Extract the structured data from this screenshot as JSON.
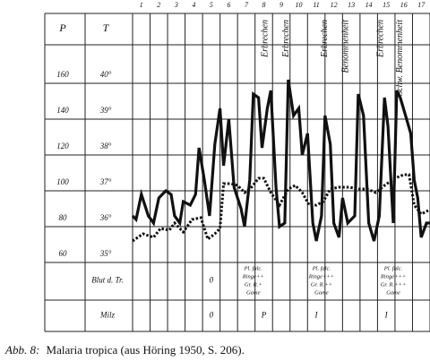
{
  "chart_data": {
    "type": "line",
    "left_axis_title": "P",
    "right_axis_title": "T",
    "xlim": [
      0.5,
      17.5
    ],
    "xticks": [
      1,
      2,
      3,
      4,
      5,
      6,
      7,
      8,
      9,
      10,
      11,
      12,
      13,
      14,
      15,
      16,
      17
    ],
    "ylim": [
      35,
      41
    ],
    "yticks": [
      {
        "value": 35,
        "label": "35°"
      },
      {
        "value": 36,
        "label": "36°"
      },
      {
        "value": 37,
        "label": "37°"
      },
      {
        "value": 38,
        "label": "38°"
      },
      {
        "value": 39,
        "label": "39°"
      },
      {
        "value": 40,
        "label": "40°"
      }
    ],
    "y2lim": [
      60,
      180
    ],
    "y2ticks": [
      60,
      80,
      100,
      120,
      140,
      160
    ],
    "series": [
      {
        "name": "T",
        "color": "#111111",
        "style": "solid",
        "x": [
          0.5,
          0.7,
          1.0,
          1.4,
          1.7,
          2.0,
          2.4,
          2.7,
          2.9,
          3.2,
          3.4,
          3.8,
          4.1,
          4.3,
          4.6,
          4.9,
          5.2,
          5.5,
          5.7,
          6.0,
          6.3,
          6.7,
          6.9,
          7.2,
          7.4,
          7.7,
          7.9,
          8.2,
          8.4,
          8.7,
          8.9,
          9.2,
          9.4,
          9.7,
          10.0,
          10.2,
          10.5,
          10.8,
          11.0,
          11.3,
          11.5,
          11.8,
          12.0,
          12.3,
          12.5,
          12.8,
          13.2,
          13.4,
          13.7,
          14.0,
          14.3,
          14.6,
          14.9,
          15.1,
          15.4,
          15.6,
          15.8,
          16.1,
          16.4,
          16.6,
          16.8,
          17.0,
          17.3,
          17.5
        ],
        "values": [
          36.3,
          36.2,
          36.9,
          36.3,
          36.1,
          36.8,
          37.0,
          36.9,
          36.3,
          36.1,
          36.7,
          36.6,
          36.9,
          38.2,
          37.3,
          36.3,
          38.3,
          39.3,
          37.7,
          39.0,
          37.1,
          36.5,
          36.0,
          37.3,
          39.7,
          39.6,
          38.2,
          39.3,
          39.8,
          37.1,
          36.0,
          36.1,
          40.1,
          39.1,
          39.3,
          38.0,
          38.6,
          36.1,
          35.6,
          36.3,
          39.1,
          38.3,
          36.1,
          35.7,
          36.8,
          36.1,
          36.3,
          39.7,
          39.1,
          36.1,
          35.6,
          36.3,
          39.6,
          38.8,
          36.1,
          39.8,
          39.6,
          39.1,
          38.6,
          37.3,
          36.8,
          35.7,
          36.1,
          36.1
        ]
      },
      {
        "name": "P",
        "color": "#111111",
        "style": "dotted",
        "axis": "y2",
        "x": [
          0.5,
          1.1,
          1.7,
          2.1,
          2.6,
          2.9,
          3.4,
          3.9,
          4.4,
          4.8,
          5.2,
          5.5,
          5.7,
          6.1,
          6.5,
          6.9,
          7.3,
          7.7,
          8.0,
          8.4,
          8.9,
          9.4,
          9.8,
          10.2,
          10.6,
          11.0,
          11.4,
          11.8,
          12.3,
          12.9,
          13.4,
          13.9,
          14.4,
          14.9,
          15.5,
          16.0,
          16.3,
          16.6,
          17.0,
          17.4
        ],
        "values": [
          72,
          76,
          74,
          79,
          78,
          82,
          77,
          84,
          85,
          73,
          76,
          79,
          104,
          104,
          103,
          99,
          102,
          107,
          107,
          99,
          92,
          101,
          103,
          99,
          92,
          92,
          94,
          101,
          102,
          102,
          101,
          101,
          99,
          103,
          107,
          109,
          109,
          92,
          87,
          89
        ]
      }
    ],
    "annotations": [
      {
        "text": "Erbrechen",
        "at": 8.1
      },
      {
        "text": "Erbrechen",
        "at": 9.3
      },
      {
        "text": "Erbrechen",
        "at": 11.5
      },
      {
        "text": "Benommenheit",
        "at": 12.7
      },
      {
        "text": "Erbrechen",
        "at": 14.7
      },
      {
        "text": "Schw. Benommenheit",
        "at": 15.8
      }
    ],
    "rows": [
      {
        "label": "Blut d. Tr.",
        "entries": [
          {
            "at": 5,
            "lines": [
              "0"
            ]
          },
          {
            "at": 7.4,
            "lines": [
              "Pl. falc.",
              "Ringe++",
              "Gr. R.+",
              "Game"
            ]
          },
          {
            "at": 11.3,
            "lines": [
              "Pl. falc.",
              "Ringe+++",
              "Gr. R.++",
              "Game"
            ]
          },
          {
            "at": 15.4,
            "lines": [
              "Pl. falc.",
              "Ringe+++",
              "Gr. R.+++",
              "Game"
            ]
          }
        ]
      },
      {
        "label": "Milz",
        "entries": [
          {
            "at": 5,
            "lines": [
              "0"
            ]
          },
          {
            "at": 8,
            "lines": [
              "P"
            ]
          },
          {
            "at": 11,
            "lines": [
              "I"
            ]
          },
          {
            "at": 15,
            "lines": [
              "I"
            ]
          }
        ]
      }
    ],
    "caption_label": "Abb. 8:",
    "caption": "Malaria tropica (aus Höring 1950, S. 206)."
  }
}
